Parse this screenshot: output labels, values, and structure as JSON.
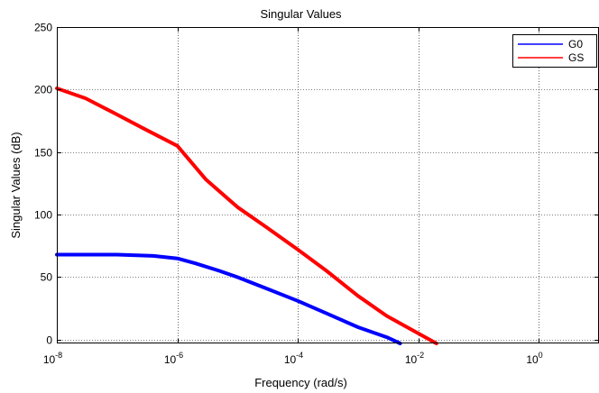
{
  "chart_data": {
    "type": "line",
    "title": "Singular Values",
    "xlabel": "Frequency (rad/s)",
    "ylabel": "Singular Values (dB)",
    "xscale": "log",
    "xlim": [
      1e-08,
      10
    ],
    "ylim": [
      -3,
      250
    ],
    "grid": true,
    "legend_position": "top-right",
    "x_ticks": [
      {
        "value": 1e-08,
        "base": "10",
        "exp": "-8"
      },
      {
        "value": 1e-06,
        "base": "10",
        "exp": "-6"
      },
      {
        "value": 0.0001,
        "base": "10",
        "exp": "-4"
      },
      {
        "value": 0.01,
        "base": "10",
        "exp": "-2"
      },
      {
        "value": 1,
        "base": "10",
        "exp": "0"
      }
    ],
    "y_ticks": [
      0,
      50,
      100,
      150,
      200,
      250
    ],
    "series": [
      {
        "name": "G0",
        "color": "#0000ff",
        "points": [
          [
            1e-08,
            68
          ],
          [
            1e-07,
            68
          ],
          [
            4e-07,
            67
          ],
          [
            1e-06,
            65
          ],
          [
            2e-06,
            61
          ],
          [
            5e-06,
            55
          ],
          [
            1e-05,
            50
          ],
          [
            3e-05,
            41
          ],
          [
            0.0001,
            31
          ],
          [
            0.0003,
            21
          ],
          [
            0.001,
            10
          ],
          [
            0.003,
            2
          ],
          [
            0.005,
            -3
          ]
        ]
      },
      {
        "name": "GS",
        "color": "#ff0000",
        "points": [
          [
            1e-08,
            201
          ],
          [
            3e-08,
            193
          ],
          [
            1e-07,
            180
          ],
          [
            3e-07,
            168
          ],
          [
            1e-06,
            155
          ],
          [
            3e-06,
            128
          ],
          [
            1e-05,
            106
          ],
          [
            3e-05,
            90
          ],
          [
            0.0001,
            72
          ],
          [
            0.0003,
            55
          ],
          [
            0.001,
            35
          ],
          [
            0.003,
            19
          ],
          [
            0.01,
            5
          ],
          [
            0.02,
            -3
          ]
        ]
      }
    ]
  }
}
